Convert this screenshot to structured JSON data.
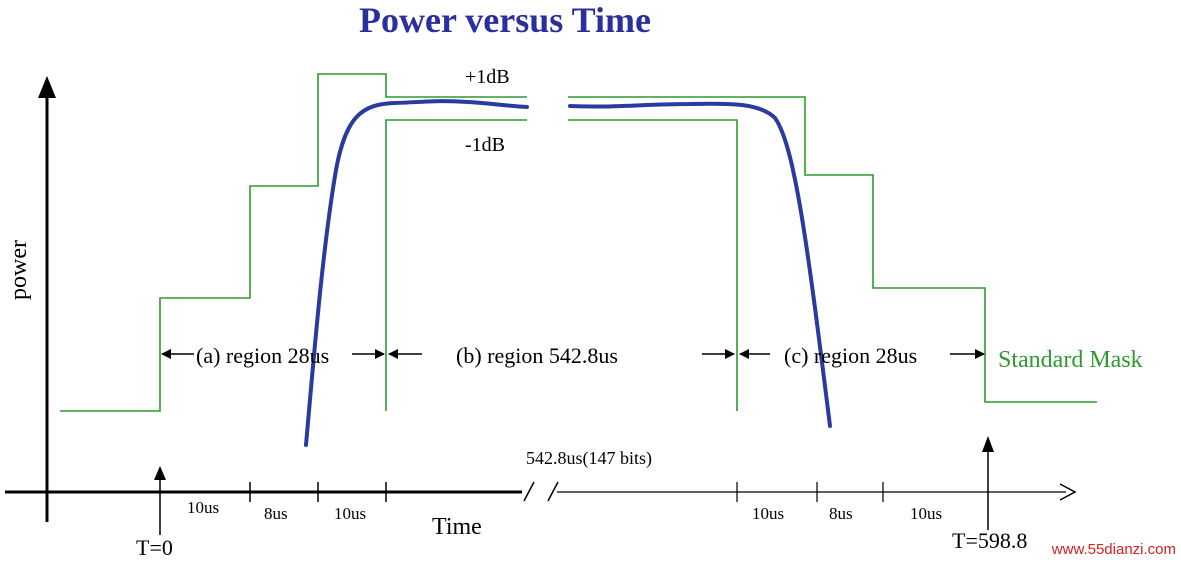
{
  "title": "Power versus Time",
  "y_axis_label": "power",
  "x_axis_label": "Time",
  "mask_upper_label": "+1dB",
  "mask_lower_label": "-1dB",
  "regions": {
    "a": "(a) region 28us",
    "b": "(b) region 542.8us",
    "c": "(c) region 28us"
  },
  "mask_legend": "Standard Mask",
  "break_label": "542.8us(147 bits)",
  "ticks_left": [
    "10us",
    "8us",
    "10us"
  ],
  "ticks_right": [
    "10us",
    "8us",
    "10us"
  ],
  "t_start": "T=0",
  "t_end": "T=598.8",
  "watermark": "www.55dianzi.com",
  "colors": {
    "title": "#2b2f9e",
    "mask": "#2e9a2e",
    "curve": "#2b3a9e",
    "axis": "#000000",
    "watermark": "#d42020"
  }
}
